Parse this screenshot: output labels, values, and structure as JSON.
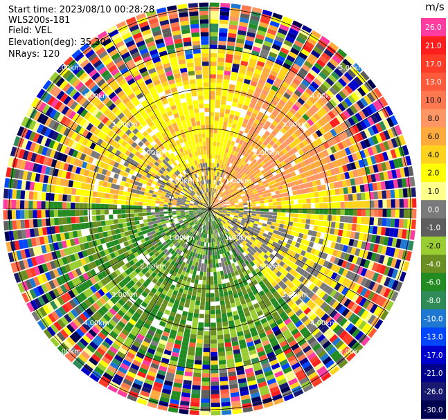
{
  "header": {
    "start_time": "Start time: 2023/08/10 00:28:28",
    "instrument": "WLS200s-181",
    "field": "Field: VEL",
    "elevation": "Elevation(deg): 35.30",
    "nrays": "NRays: 120"
  },
  "rings": [
    {
      "range_km": 1.0,
      "label": "1.00km"
    },
    {
      "range_km": 2.0,
      "label": "2.00km"
    },
    {
      "range_km": 3.0,
      "label": "3.00km"
    },
    {
      "range_km": 4.0,
      "label": "4.00km"
    },
    {
      "range_km": 5.0,
      "label": "5.00km"
    }
  ],
  "colorbar": {
    "unit": "m/s",
    "ticks": [
      "26.0",
      "21.0",
      "17.0",
      "13.0",
      "10.0",
      "8.0",
      "6.0",
      "4.0",
      "2.0",
      "1.0",
      "0.0",
      "-1.0",
      "-2.0",
      "-4.0",
      "-6.0",
      "-8.0",
      "-10.0",
      "-13.0",
      "-17.0",
      "-21.0",
      "-26.0",
      "-30.0"
    ],
    "colors": [
      "#ff3c9f",
      "#ff1e1e",
      "#ff3c28",
      "#ff5a3c",
      "#ff7850",
      "#ff9664",
      "#ffaa3c",
      "#ffd21e",
      "#ffff00",
      "#ffff8c",
      "#7a7a7a",
      "#5e5e5e",
      "#9acd32",
      "#6b8e23",
      "#228b22",
      "#2e8b57",
      "#1e78d2",
      "#0046ff",
      "#0000cd",
      "#00008b",
      "#191970",
      "#000050"
    ]
  }
}
